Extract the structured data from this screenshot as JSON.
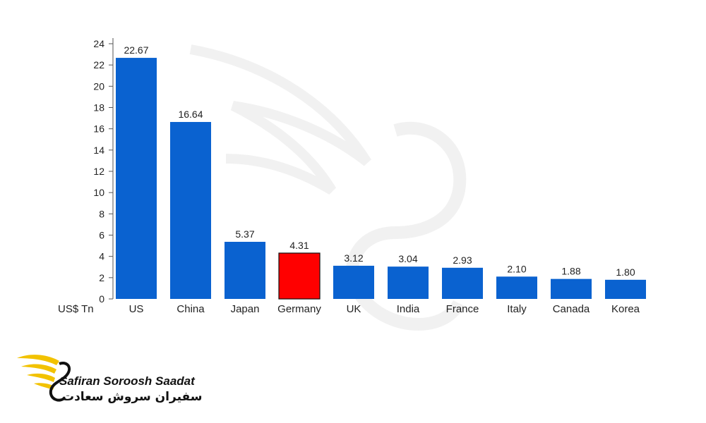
{
  "chart_data": {
    "type": "bar",
    "categories": [
      "US",
      "China",
      "Japan",
      "Germany",
      "UK",
      "India",
      "France",
      "Italy",
      "Canada",
      "Korea"
    ],
    "values": [
      22.67,
      16.64,
      5.37,
      4.31,
      3.12,
      3.04,
      2.93,
      2.1,
      1.88,
      1.8
    ],
    "value_labels": [
      "22.67",
      "16.64",
      "5.37",
      "4.31",
      "3.12",
      "3.04",
      "2.93",
      "2.10",
      "1.88",
      "1.80"
    ],
    "highlight_category": "Germany",
    "ylim": [
      0,
      24
    ],
    "yticks": [
      0,
      2,
      4,
      6,
      8,
      10,
      12,
      14,
      16,
      18,
      20,
      22,
      24
    ],
    "unit_label": "US$ Tn",
    "colors": {
      "bar": "#0a62d0",
      "highlight": "#ff0000",
      "axis": "#555555"
    },
    "grid": false,
    "legend": "none"
  },
  "branding": {
    "logo_en": "Safiran Soroosh Saadat",
    "logo_fa": "سفیران سروش سعادت",
    "logo_color": "#f2c200"
  }
}
